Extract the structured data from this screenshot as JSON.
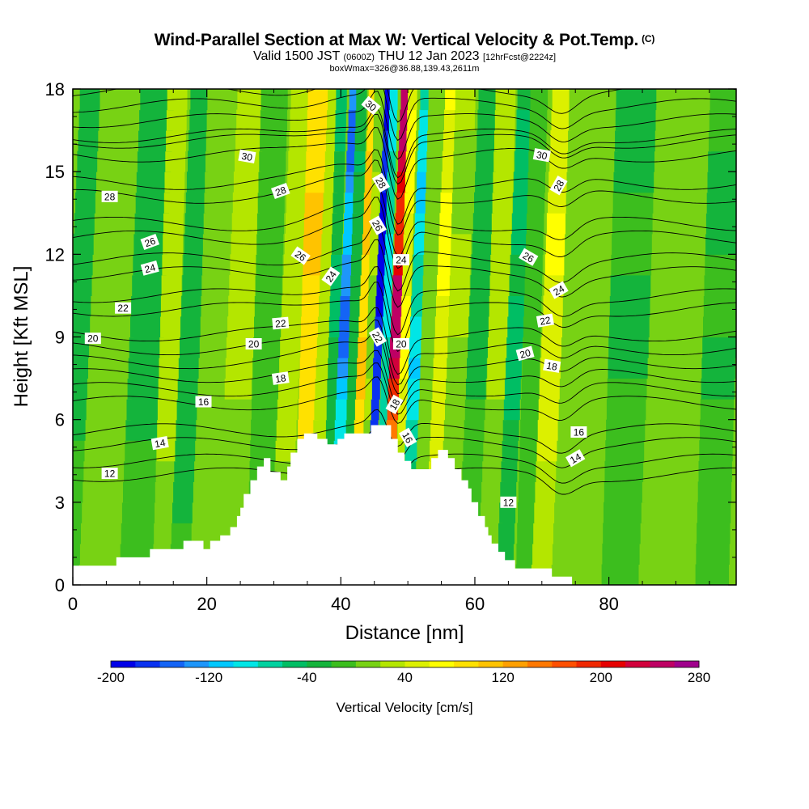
{
  "header": {
    "title_main": "Wind-Parallel Section at Max W: Vertical Velocity & Pot.Temp.",
    "title_mark": "(C)",
    "subtitle_valid": "Valid 1500 JST",
    "subtitle_z": "(0600Z)",
    "subtitle_date": "THU 12 Jan 2023",
    "subtitle_fcst": "[12hrFcst@2224z]",
    "subtitle_box": "boxWmax=326@36.88,139.43,2611m"
  },
  "chart_data": {
    "type": "heatmap",
    "title": "Wind-Parallel Section at Max W: Vertical Velocity & Pot.Temp.",
    "xlabel": "Distance [nm]",
    "ylabel": "Height [Kft MSL]",
    "xlim": [
      0,
      99
    ],
    "ylim": [
      0,
      18
    ],
    "x_ticks": [
      "0",
      "20",
      "40",
      "60",
      "80"
    ],
    "x_tick_values": [
      0,
      20,
      40,
      60,
      80
    ],
    "y_ticks": [
      "0",
      "3",
      "6",
      "9",
      "12",
      "15",
      "18"
    ],
    "y_tick_values": [
      0,
      3,
      6,
      9,
      12,
      15,
      18
    ],
    "colorbar": {
      "title": "Vertical Velocity [cm/s]",
      "min": -200,
      "max": 280,
      "step": 20,
      "labels": [
        "-200",
        "-120",
        "-40",
        "40",
        "120",
        "200",
        "280"
      ],
      "label_values": [
        -200,
        -120,
        -40,
        40,
        120,
        200,
        280
      ],
      "colors": [
        "#0000e8",
        "#0a32f0",
        "#1464f5",
        "#1e96fa",
        "#00c8ff",
        "#00e6e6",
        "#00d2a0",
        "#00be64",
        "#14b43c",
        "#3cbe1e",
        "#78d214",
        "#b4e600",
        "#dcf000",
        "#ffff00",
        "#ffe100",
        "#ffc300",
        "#ffa000",
        "#ff7800",
        "#ff5000",
        "#f02800",
        "#e60000",
        "#d2003c",
        "#be0064",
        "#a0008c",
        "#780096"
      ]
    },
    "vertical_velocity_bands": [
      {
        "x_center": 1.0,
        "width": 3,
        "w": -30
      },
      {
        "x_center": 6.0,
        "width": 6,
        "w": 10
      },
      {
        "x_center": 11.0,
        "width": 5,
        "w": -25
      },
      {
        "x_center": 14.5,
        "width": 3,
        "w": 25
      },
      {
        "x_center": 17.5,
        "width": 3,
        "w": -35
      },
      {
        "x_center": 21.0,
        "width": 4,
        "w": 15
      },
      {
        "x_center": 25.0,
        "width": 4,
        "w": 25
      },
      {
        "x_center": 29.0,
        "width": 4,
        "w": -15
      },
      {
        "x_center": 32.5,
        "width": 3,
        "w": 30
      },
      {
        "x_center": 35.5,
        "width": 3,
        "w": 95
      },
      {
        "x_center": 37.5,
        "width": 2,
        "w": 30
      },
      {
        "x_center": 39.0,
        "width": 1.6,
        "w": -40
      },
      {
        "x_center": 40.6,
        "width": 1.8,
        "w": -130
      },
      {
        "x_center": 42.0,
        "width": 1.6,
        "w": -35
      },
      {
        "x_center": 43.3,
        "width": 1.4,
        "w": 100
      },
      {
        "x_center": 44.5,
        "width": 1.2,
        "w": 20
      },
      {
        "x_center": 45.6,
        "width": 1.2,
        "w": -190
      },
      {
        "x_center": 46.8,
        "width": 1.2,
        "w": -80
      },
      {
        "x_center": 48.2,
        "width": 1.6,
        "w": 225
      },
      {
        "x_center": 49.6,
        "width": 1.4,
        "w": 60
      },
      {
        "x_center": 51.2,
        "width": 1.8,
        "w": -90
      },
      {
        "x_center": 53.0,
        "width": 2,
        "w": 10
      },
      {
        "x_center": 55.0,
        "width": 2,
        "w": 60
      },
      {
        "x_center": 57.5,
        "width": 3,
        "w": 20
      },
      {
        "x_center": 60.5,
        "width": 3,
        "w": -25
      },
      {
        "x_center": 63.5,
        "width": 3,
        "w": 25
      },
      {
        "x_center": 66.0,
        "width": 2.4,
        "w": -45
      },
      {
        "x_center": 68.5,
        "width": 2.6,
        "w": -5
      },
      {
        "x_center": 71.5,
        "width": 3,
        "w": 55
      },
      {
        "x_center": 74.0,
        "width": 2,
        "w": 15
      },
      {
        "x_center": 77.5,
        "width": 5,
        "w": 10
      },
      {
        "x_center": 83.0,
        "width": 6,
        "w": -20
      },
      {
        "x_center": 90.0,
        "width": 8,
        "w": 10
      },
      {
        "x_center": 96.5,
        "width": 5,
        "w": -20
      }
    ],
    "terrain": {
      "x": [
        0,
        6.5,
        6.5,
        11.5,
        11.5,
        16.5,
        16.5,
        19.5,
        19.5,
        20.5,
        20.5,
        22,
        22,
        23.5,
        23.5,
        24.5,
        24.5,
        25,
        25,
        25.5,
        25.5,
        26.5,
        26.5,
        27.5,
        27.5,
        28.5,
        28.5,
        29.5,
        29.5,
        31,
        31,
        32,
        32,
        32.5,
        32.5,
        33.5,
        33.5,
        34.5,
        34.5,
        35.5,
        35.5,
        36.5,
        36.5,
        38,
        38,
        39.5,
        39.5,
        40.5,
        40.5,
        44.5,
        44.5,
        47.5,
        47.5,
        48.5,
        48.5,
        49.5,
        49.5,
        50.5,
        50.5,
        51.5,
        51.5,
        53.5,
        53.5,
        54.5,
        54.5,
        56,
        56,
        57,
        57,
        58,
        58,
        59,
        59,
        59.5,
        59.5,
        60.5,
        60.5,
        61.5,
        61.5,
        62,
        62,
        62.5,
        62.5,
        63.5,
        63.5,
        64.5,
        64.5,
        66,
        66,
        71.5,
        71.5,
        74.5,
        74.5,
        99
      ],
      "h": [
        0.7,
        0.7,
        1.0,
        1.0,
        1.3,
        1.3,
        1.6,
        1.6,
        1.3,
        1.3,
        1.6,
        1.6,
        1.8,
        1.8,
        2.1,
        2.1,
        2.5,
        2.5,
        2.8,
        2.8,
        3.3,
        3.3,
        3.8,
        3.8,
        4.3,
        4.3,
        4.6,
        4.6,
        4.1,
        4.1,
        3.8,
        3.8,
        4.3,
        4.3,
        4.8,
        4.8,
        5.3,
        5.3,
        5.5,
        5.5,
        5.5,
        5.5,
        5.3,
        5.3,
        5.1,
        5.1,
        5.3,
        5.3,
        5.5,
        5.5,
        5.8,
        5.8,
        5.3,
        5.3,
        4.8,
        4.8,
        4.5,
        4.5,
        4.2,
        4.2,
        4.2,
        4.2,
        4.6,
        4.6,
        4.9,
        4.9,
        4.6,
        4.6,
        4.2,
        4.2,
        3.8,
        3.8,
        3.5,
        3.5,
        3.0,
        3.0,
        2.5,
        2.5,
        2.1,
        2.1,
        1.8,
        1.8,
        1.5,
        1.5,
        1.2,
        1.2,
        0.9,
        0.9,
        0.6,
        0.6,
        0.3,
        0.3,
        0.0,
        0.0
      ]
    },
    "contour_series": [
      {
        "label": "12",
        "base": 4.0
      },
      {
        "label": "14",
        "base": 5.1
      },
      {
        "label": "16",
        "base": 6.6
      },
      {
        "label": "18",
        "base": 7.6
      },
      {
        "label": "20",
        "base": 8.6
      },
      {
        "label": "22",
        "base": 10.0
      },
      {
        "label": "24",
        "base": 11.3
      },
      {
        "label": "26",
        "base": 12.6
      },
      {
        "label": "28",
        "base": 14.1
      },
      {
        "label": "30",
        "base": 15.6
      }
    ],
    "contour_labels": [
      {
        "text": "12",
        "x": 5.5,
        "y": 4.05,
        "angle": 0
      },
      {
        "text": "14",
        "x": 13.0,
        "y": 5.15,
        "angle": -10
      },
      {
        "text": "16",
        "x": 19.5,
        "y": 6.65,
        "angle": 0
      },
      {
        "text": "18",
        "x": 31.0,
        "y": 7.5,
        "angle": -8
      },
      {
        "text": "20",
        "x": 27.0,
        "y": 8.75,
        "angle": 0
      },
      {
        "text": "22",
        "x": 31.0,
        "y": 9.5,
        "angle": -5
      },
      {
        "text": "22",
        "x": 7.5,
        "y": 10.05,
        "angle": 0
      },
      {
        "text": "20",
        "x": 3.0,
        "y": 8.95,
        "angle": 0
      },
      {
        "text": "24",
        "x": 11.5,
        "y": 11.5,
        "angle": -15
      },
      {
        "text": "26",
        "x": 11.5,
        "y": 12.45,
        "angle": -20
      },
      {
        "text": "28",
        "x": 5.5,
        "y": 14.1,
        "angle": 0
      },
      {
        "text": "26",
        "x": 34.0,
        "y": 11.95,
        "angle": 35
      },
      {
        "text": "28",
        "x": 31.0,
        "y": 14.3,
        "angle": -20
      },
      {
        "text": "30",
        "x": 26.0,
        "y": 15.55,
        "angle": 10
      },
      {
        "text": "24",
        "x": 38.5,
        "y": 11.2,
        "angle": -55
      },
      {
        "text": "30",
        "x": 44.5,
        "y": 17.4,
        "angle": 40
      },
      {
        "text": "28",
        "x": 46.0,
        "y": 14.6,
        "angle": 60
      },
      {
        "text": "26",
        "x": 45.5,
        "y": 13.05,
        "angle": 60
      },
      {
        "text": "24",
        "x": 49.0,
        "y": 11.8,
        "angle": 0
      },
      {
        "text": "22",
        "x": 45.5,
        "y": 9.0,
        "angle": 60
      },
      {
        "text": "20",
        "x": 49.0,
        "y": 8.75,
        "angle": 0
      },
      {
        "text": "18",
        "x": 48.0,
        "y": 6.55,
        "angle": -60
      },
      {
        "text": "16",
        "x": 50.0,
        "y": 5.35,
        "angle": 60
      },
      {
        "text": "30",
        "x": 70.0,
        "y": 15.6,
        "angle": 10
      },
      {
        "text": "28",
        "x": 72.5,
        "y": 14.5,
        "angle": -60
      },
      {
        "text": "26",
        "x": 68.0,
        "y": 11.9,
        "angle": 30
      },
      {
        "text": "24",
        "x": 72.5,
        "y": 10.7,
        "angle": -30
      },
      {
        "text": "22",
        "x": 70.5,
        "y": 9.6,
        "angle": -10
      },
      {
        "text": "20",
        "x": 67.5,
        "y": 8.4,
        "angle": -15
      },
      {
        "text": "18",
        "x": 71.5,
        "y": 7.95,
        "angle": 10
      },
      {
        "text": "16",
        "x": 75.5,
        "y": 5.55,
        "angle": 0
      },
      {
        "text": "14",
        "x": 75.0,
        "y": 4.6,
        "angle": -30
      },
      {
        "text": "12",
        "x": 65.0,
        "y": 3.0,
        "angle": 0
      }
    ]
  }
}
